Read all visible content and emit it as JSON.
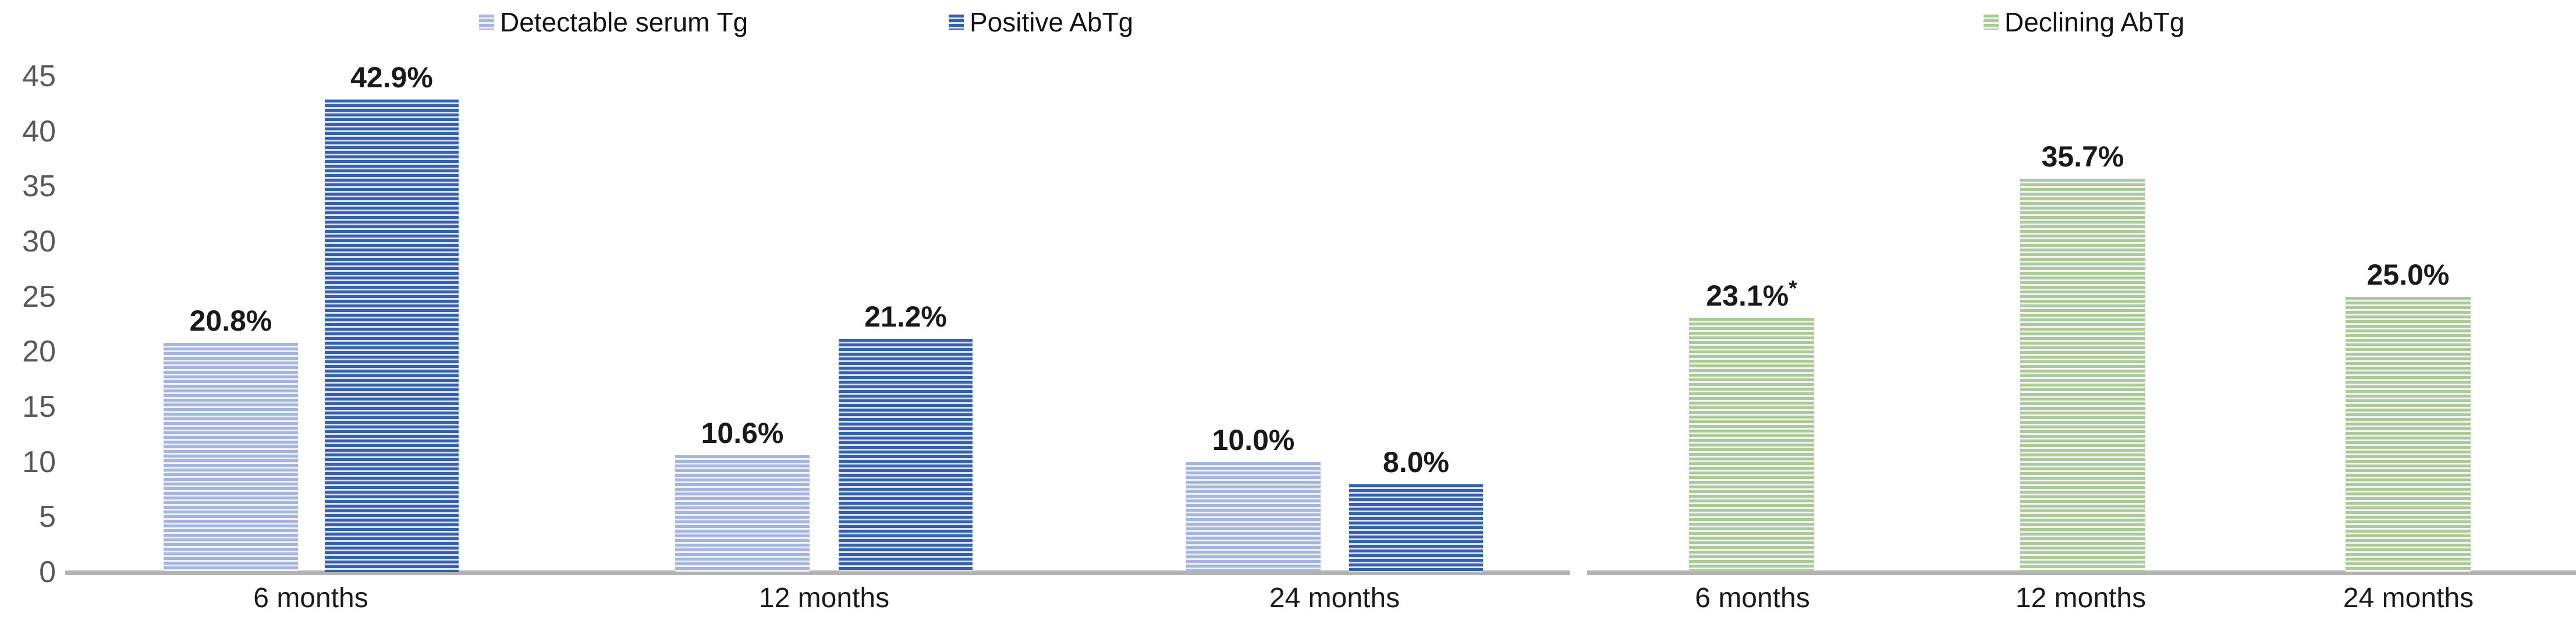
{
  "chart_data": {
    "type": "bar",
    "title": "",
    "xlabel": "",
    "ylabel": "",
    "ylim": [
      0,
      45
    ],
    "yticks": [
      0,
      5,
      10,
      15,
      20,
      25,
      30,
      35,
      40,
      45
    ],
    "grid": false,
    "legend_position": "top",
    "axis_color": "#b3b3b3",
    "tick_label_color": "#595959",
    "categories": [
      "6 months",
      "12 months",
      "24 months"
    ],
    "panels": [
      {
        "name": "left-panel",
        "series": [
          {
            "name": "Detectable serum Tg",
            "values": [
              20.8,
              10.6,
              10.0
            ],
            "value_labels": [
              "20.8%",
              "10.6%",
              "10.0%"
            ],
            "annotations": [
              "",
              "",
              ""
            ],
            "color_fg": "#a5b5de",
            "color_bg": "#eef2fa"
          },
          {
            "name": "Positive AbTg",
            "values": [
              42.9,
              21.2,
              8.0
            ],
            "value_labels": [
              "42.9%",
              "21.2%",
              "8.0%"
            ],
            "annotations": [
              "",
              "",
              ""
            ],
            "color_fg": "#3560ae",
            "color_bg": "#dce4f4"
          }
        ]
      },
      {
        "name": "right-panel",
        "series": [
          {
            "name": "Declining AbTg",
            "values": [
              23.1,
              35.7,
              25.0
            ],
            "value_labels": [
              "23.1%",
              "35.7%",
              "25.0%"
            ],
            "annotations": [
              "*",
              "",
              ""
            ],
            "color_fg": "#abc99b",
            "color_bg": "#f3f7f0"
          }
        ]
      }
    ],
    "legend": [
      "Detectable serum Tg",
      "Positive AbTg",
      "Declining AbTg"
    ]
  }
}
